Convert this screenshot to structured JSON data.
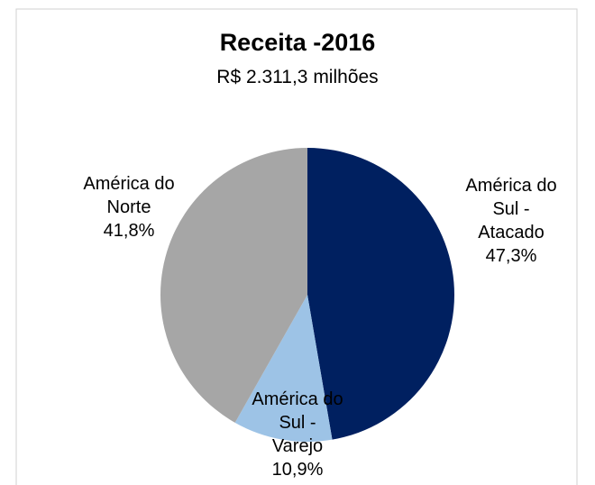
{
  "chart_data": {
    "type": "pie",
    "title": "Receita -2016",
    "subtitle": "R$ 2.311,3 milhões",
    "categories": [
      "América do Sul - Atacado",
      "América do Sul - Varejo",
      "América do Norte"
    ],
    "values": [
      47.3,
      10.9,
      41.8
    ],
    "value_labels": [
      "47,3%",
      "10,9%",
      "41,8%"
    ],
    "colors": [
      "#002060",
      "#9dc3e6",
      "#a6a6a6"
    ]
  }
}
